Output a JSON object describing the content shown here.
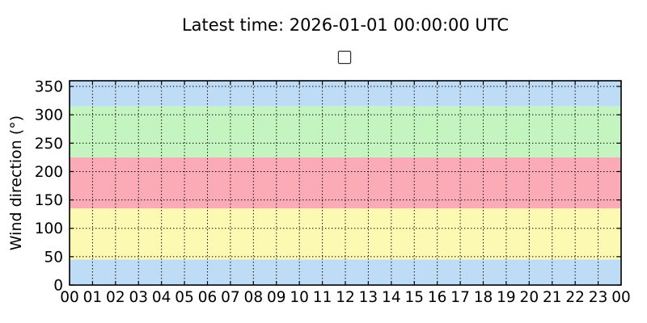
{
  "figure": {
    "title": "Latest time: 2026-01-01 00:00:00 UTC",
    "background_color": "#ffffff"
  },
  "legend": {
    "visible": true,
    "entries": []
  },
  "chart_data": {
    "type": "line",
    "title": "Latest time: 2026-01-01 00:00:00 UTC",
    "xlabel": "",
    "ylabel": "Wind direction (°)",
    "xlim": [
      0,
      24
    ],
    "ylim": [
      0,
      360
    ],
    "x_tick_labels": [
      "00",
      "01",
      "02",
      "03",
      "04",
      "05",
      "06",
      "07",
      "08",
      "09",
      "10",
      "11",
      "12",
      "13",
      "14",
      "15",
      "16",
      "17",
      "18",
      "19",
      "20",
      "21",
      "22",
      "23",
      "00"
    ],
    "y_ticks": [
      0,
      50,
      100,
      150,
      200,
      250,
      300,
      350
    ],
    "grid": "dotted",
    "grid_color": "#000000",
    "axis_color": "#000000",
    "series": [],
    "background_bands": [
      {
        "y_from": 0,
        "y_to": 45,
        "color": "#bfdcf6"
      },
      {
        "y_from": 45,
        "y_to": 135,
        "color": "#fbf9b2"
      },
      {
        "y_from": 135,
        "y_to": 225,
        "color": "#faabb5"
      },
      {
        "y_from": 225,
        "y_to": 315,
        "color": "#c4f4bf"
      },
      {
        "y_from": 315,
        "y_to": 360,
        "color": "#bfdcf6"
      }
    ]
  }
}
